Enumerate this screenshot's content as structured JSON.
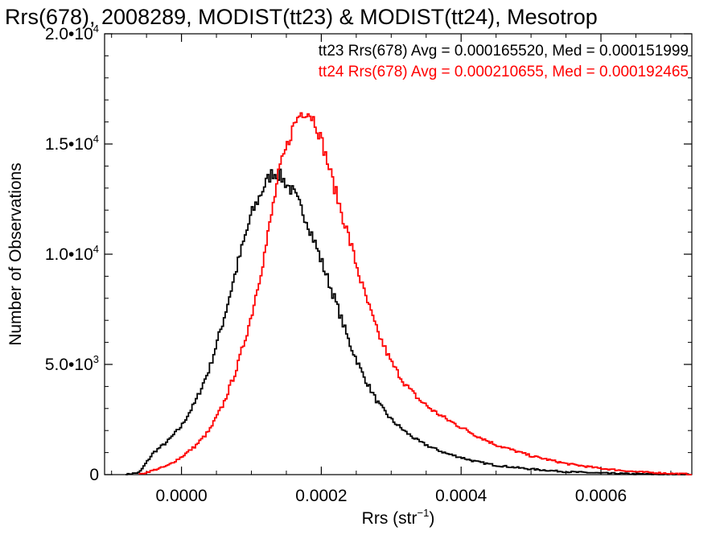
{
  "chart_data": {
    "type": "histogram",
    "title": "Rrs(678), 2008289, MODIST(tt23) & MODIST(tt24), Mesotrop",
    "xlabel": "Rrs (str",
    "xlabel_sup": "−1",
    "xlabel_end": ")",
    "ylabel": "Number of Observations",
    "xlim": [
      -0.00011,
      0.00073
    ],
    "ylim": [
      0,
      20000
    ],
    "xticks": [
      0.0,
      0.0002,
      0.0004,
      0.0006
    ],
    "xtick_labels": [
      "0.0000",
      "0.0002",
      "0.0004",
      "0.0006"
    ],
    "yticks": [
      {
        "value": 0,
        "base": "0",
        "exp": ""
      },
      {
        "value": 5000,
        "base": "5.0•10",
        "exp": "3"
      },
      {
        "value": 10000,
        "base": "1.0•10",
        "exp": "4"
      },
      {
        "value": 15000,
        "base": "1.5•10",
        "exp": "4"
      },
      {
        "value": 20000,
        "base": "2.0•10",
        "exp": "4"
      }
    ],
    "grid": false,
    "series": [
      {
        "name": "tt23",
        "color": "#000000",
        "stats": "tt23 Rrs(678) Avg = 0.000165520, Med = 0.000151999",
        "x": [
          -8e-05,
          -6e-05,
          -4e-05,
          -2e-05,
          0.0,
          2e-05,
          4e-05,
          6e-05,
          8e-05,
          0.0001,
          0.00012,
          0.00013,
          0.00014,
          0.00016,
          0.00018,
          0.0002,
          0.00022,
          0.00024,
          0.00026,
          0.00028,
          0.0003,
          0.00032,
          0.00034,
          0.00036,
          0.00038,
          0.0004,
          0.00042,
          0.00045,
          0.0005,
          0.00055,
          0.0006,
          0.00065,
          0.0007,
          0.00073
        ],
        "values": [
          0,
          100,
          1000,
          1500,
          2200,
          3300,
          4800,
          7000,
          9500,
          11800,
          13200,
          13700,
          13600,
          12800,
          11500,
          9700,
          7900,
          6000,
          4500,
          3300,
          2500,
          1950,
          1500,
          1200,
          950,
          780,
          600,
          420,
          250,
          130,
          70,
          30,
          10,
          5
        ]
      },
      {
        "name": "tt24",
        "color": "#ff0000",
        "stats": "tt24 Rrs(678) Avg = 0.000210655, Med = 0.000192465",
        "x": [
          -6e-05,
          -4e-05,
          -2e-05,
          0.0,
          2e-05,
          4e-05,
          6e-05,
          8e-05,
          0.0001,
          0.00012,
          0.00014,
          0.00016,
          0.00017,
          0.00018,
          0.00019,
          0.0002,
          0.00022,
          0.00024,
          0.00026,
          0.00028,
          0.0003,
          0.00032,
          0.00034,
          0.00036,
          0.00038,
          0.0004,
          0.00042,
          0.00045,
          0.0005,
          0.00055,
          0.0006,
          0.00065,
          0.0007,
          0.00073
        ],
        "values": [
          0,
          200,
          400,
          800,
          1300,
          2000,
          3200,
          4900,
          7200,
          10200,
          13800,
          15800,
          16400,
          16500,
          16100,
          15200,
          12900,
          10700,
          8400,
          6500,
          5100,
          4100,
          3400,
          2900,
          2500,
          2150,
          1800,
          1350,
          850,
          500,
          280,
          130,
          50,
          20
        ]
      }
    ]
  }
}
